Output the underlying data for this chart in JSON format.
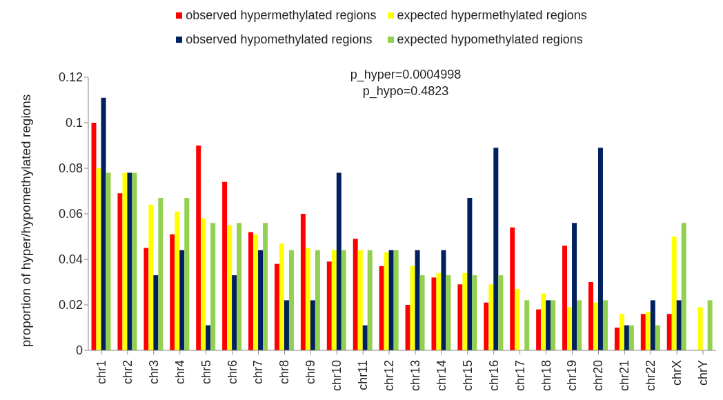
{
  "chart_data": {
    "type": "bar",
    "ylabel": "proportion of hyper/hypomethylated regions",
    "annotations": [
      "p_hyper=0.0004998",
      "p_hypo=0.4823"
    ],
    "categories": [
      "chr1",
      "chr2",
      "chr3",
      "chr4",
      "chr5",
      "chr6",
      "chr7",
      "chr8",
      "chr9",
      "chr10",
      "chr11",
      "chr12",
      "chr13",
      "chr14",
      "chr15",
      "chr16",
      "chr17",
      "chr18",
      "chr19",
      "chr20",
      "chr21",
      "chr22",
      "chrX",
      "chrY"
    ],
    "series": [
      {
        "name": "observed hypermethylated regions",
        "color": "#ff0000",
        "values": [
          0.1,
          0.069,
          0.045,
          0.051,
          0.09,
          0.074,
          0.052,
          0.038,
          0.06,
          0.039,
          0.049,
          0.037,
          0.02,
          0.032,
          0.029,
          0.021,
          0.054,
          0.018,
          0.046,
          0.03,
          0.01,
          0.016,
          0.016,
          0
        ]
      },
      {
        "name": "expected hypermethylated regions",
        "color": "#ffff00",
        "values": [
          0.08,
          0.078,
          0.064,
          0.061,
          0.058,
          0.055,
          0.051,
          0.047,
          0.045,
          0.044,
          0.044,
          0.043,
          0.037,
          0.034,
          0.034,
          0.029,
          0.027,
          0.025,
          0.019,
          0.021,
          0.016,
          0.017,
          0.05,
          0.019
        ]
      },
      {
        "name": "observed hypomethylated regions",
        "color": "#002060",
        "values": [
          0.111,
          0.078,
          0.033,
          0.044,
          0.011,
          0.033,
          0.044,
          0.022,
          0.022,
          0.078,
          0.011,
          0.044,
          0.044,
          0.044,
          0.067,
          0.089,
          0,
          0.022,
          0.056,
          0.089,
          0.011,
          0.022,
          0.022,
          0
        ]
      },
      {
        "name": "expected hypomethylated regions",
        "color": "#92d050",
        "values": [
          0.078,
          0.078,
          0.067,
          0.067,
          0.056,
          0.056,
          0.056,
          0.044,
          0.044,
          0.044,
          0.044,
          0.044,
          0.033,
          0.033,
          0.033,
          0.033,
          0.022,
          0.022,
          0.022,
          0.022,
          0.011,
          0.011,
          0.056,
          0.022
        ]
      }
    ],
    "ylim": [
      0,
      0.12
    ],
    "yticks": [
      0,
      0.02,
      0.04,
      0.06,
      0.08,
      0.1,
      0.12
    ],
    "grid": false,
    "legend": "top"
  }
}
